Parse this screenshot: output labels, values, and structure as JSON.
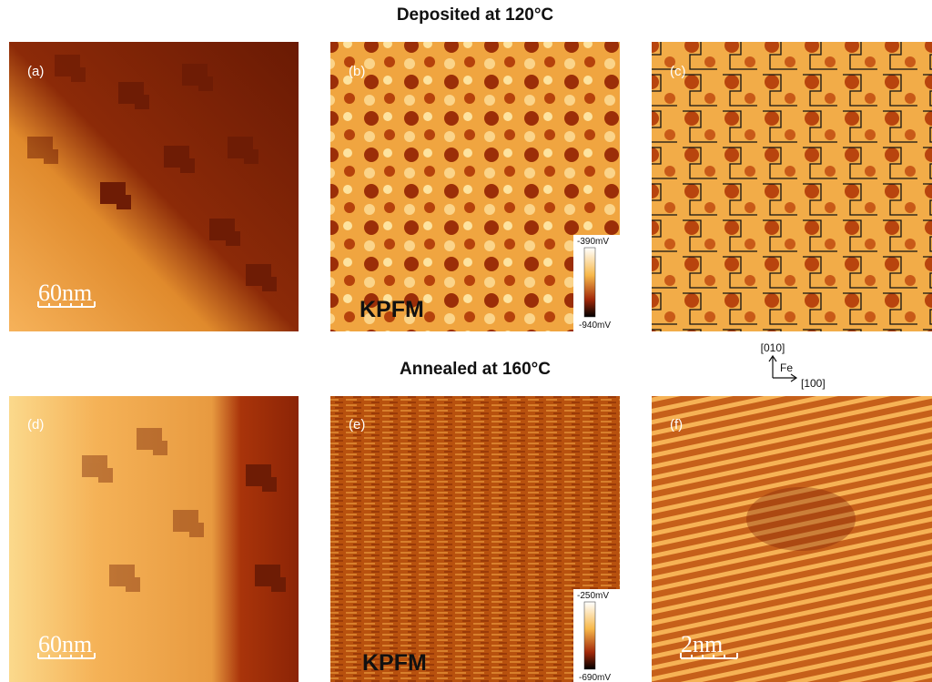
{
  "headings": [
    "Deposited at 120°C",
    "Annealed at 160°C"
  ],
  "panels": [
    {
      "label": "(a)",
      "scale_bar": "60nm"
    },
    {
      "label": "(b)",
      "mode": "KPFM",
      "colorbar": [
        "-390mV",
        "-940mV"
      ]
    },
    {
      "label": "(c)"
    },
    {
      "label": "(d)",
      "scale_bar": "60nm"
    },
    {
      "label": "(e)",
      "mode": "KPFM",
      "colorbar": [
        "-250mV",
        "-690mV"
      ]
    },
    {
      "label": "(f)",
      "scale_bar": "2nm"
    }
  ],
  "axes": {
    "y": "[010]",
    "element": "Fe",
    "x": "[100]"
  }
}
